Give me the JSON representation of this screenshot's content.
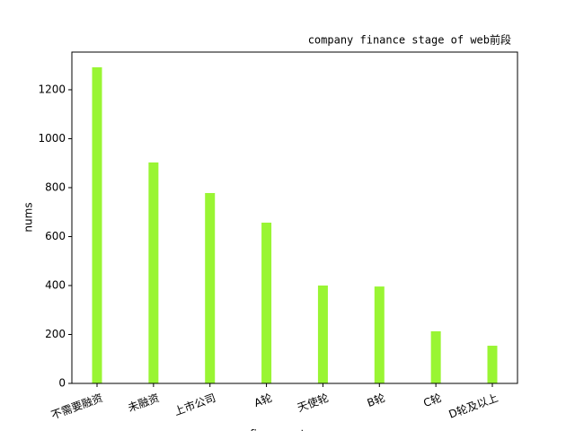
{
  "chart_data": {
    "type": "bar",
    "title": "company finance stage of web前段",
    "xlabel": "finance_stage",
    "ylabel": "nums",
    "categories": [
      "不需要融资",
      "未融资",
      "上市公司",
      "A轮",
      "天使轮",
      "B轮",
      "C轮",
      "D轮及以上"
    ],
    "values": [
      1292,
      903,
      778,
      657,
      400,
      396,
      213,
      154
    ],
    "color": "#99f533",
    "ylim": [
      0,
      1354
    ],
    "yticks": [
      0,
      200,
      400,
      600,
      800,
      1000,
      1200
    ],
    "grid": false
  }
}
